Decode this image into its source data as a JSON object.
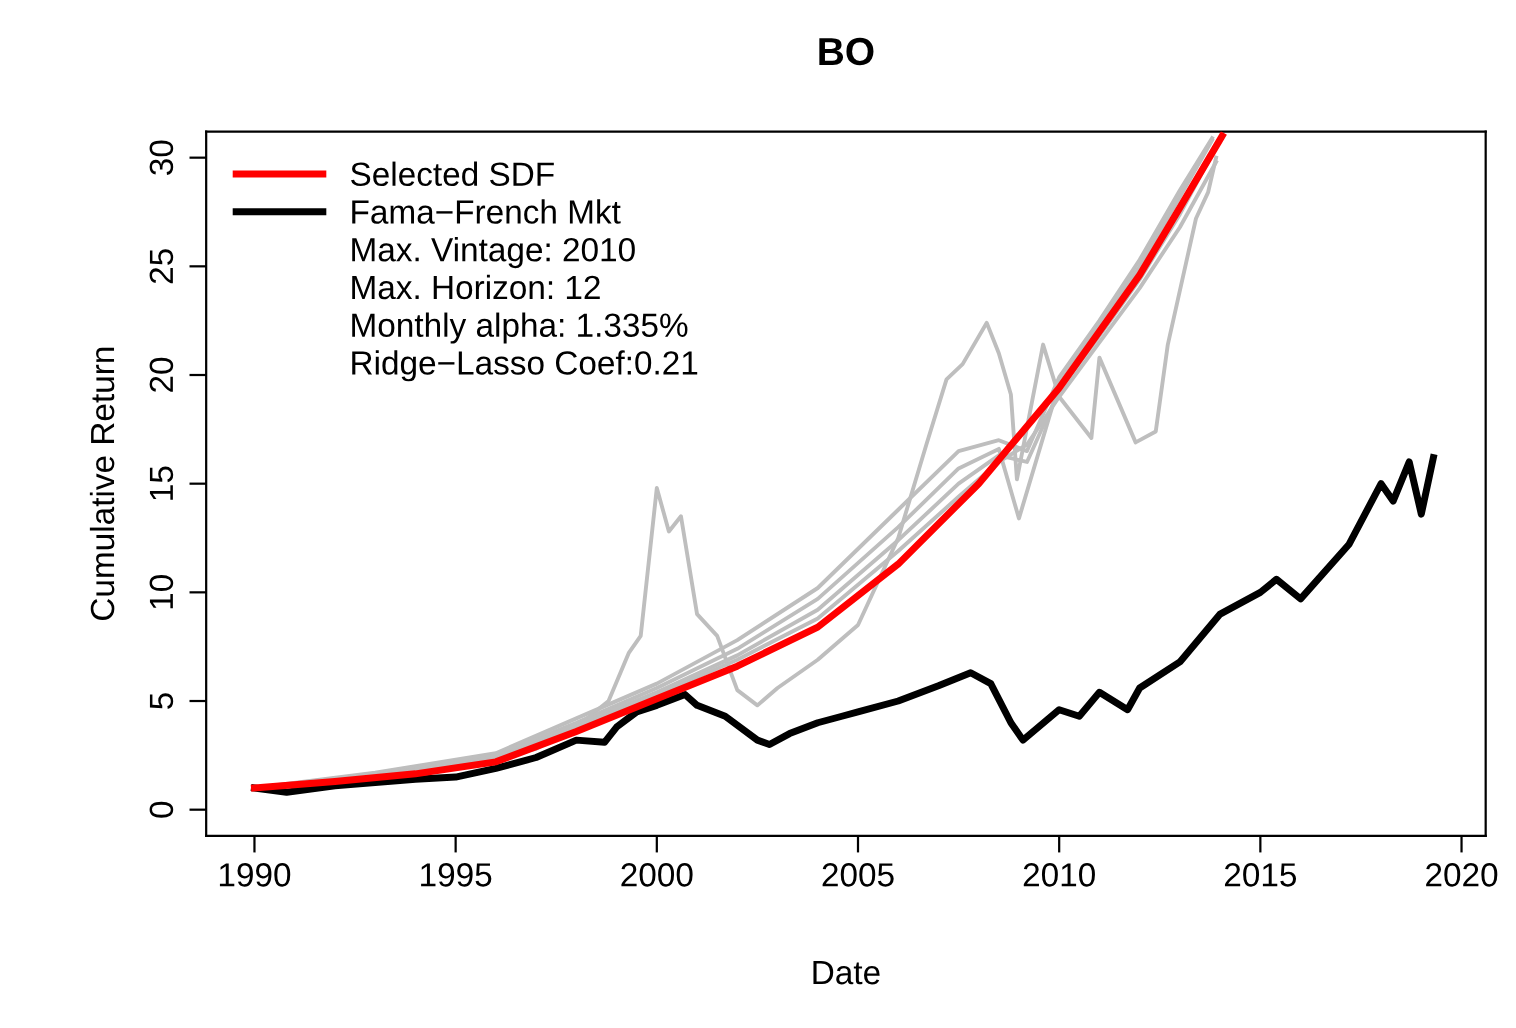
{
  "chart_data": {
    "type": "line",
    "title": "BO",
    "xlabel": "Date",
    "ylabel": "Cumulative Return",
    "xlim": [
      1988.8,
      2020.6
    ],
    "ylim": [
      -1.2,
      31.2
    ],
    "xticks": [
      1990,
      1995,
      2000,
      2005,
      2010,
      2015,
      2020
    ],
    "yticks": [
      0,
      5,
      10,
      15,
      20,
      25,
      30
    ],
    "grid": false,
    "legend": "top left",
    "line_style": "solid",
    "marker": "none",
    "annotations": [
      "Max. Vintage: 2010",
      "Max. Horizon: 12",
      "Monthly alpha: 1.335%",
      "Ridge−Lasso Coef:0.21"
    ],
    "series": [
      {
        "color": "#bebebe",
        "x": [
          1990,
          1993,
          1996,
          1997,
          1998,
          1998.8,
          1999.3,
          1999.6,
          2000,
          2000.3,
          2000.6,
          2001,
          2001.5,
          2002,
          2002.5,
          2003,
          2004,
          2005,
          2006,
          2006.7,
          2007.2,
          2007.6,
          2008.2,
          2008.5,
          2008.8,
          2008.95,
          2009.6,
          2010,
          2010.8,
          2011,
          2011.9,
          2012.4,
          2012.7,
          2013.4,
          2013.7,
          2013.9
        ],
        "values": [
          1.0,
          1.6,
          2.4,
          2.8,
          3.8,
          5.0,
          7.2,
          8.0,
          14.8,
          12.8,
          13.5,
          9.0,
          8.0,
          5.5,
          4.8,
          5.6,
          6.9,
          8.5,
          12.5,
          16.8,
          19.8,
          20.5,
          22.4,
          21.0,
          19.1,
          15.2,
          21.4,
          19.0,
          17.1,
          20.8,
          16.9,
          17.4,
          21.4,
          27.2,
          28.4,
          30.0
        ]
      },
      {
        "color": "#bebebe",
        "x": [
          1990,
          1993,
          1996,
          1998,
          2000,
          2002,
          2004,
          2006,
          2007.5,
          2008.5,
          2009.2,
          2010,
          2011,
          2012,
          2013,
          2013.8
        ],
        "values": [
          1.0,
          1.7,
          2.6,
          4.2,
          5.8,
          7.8,
          10.2,
          13.8,
          16.5,
          17.0,
          16.5,
          19.9,
          22.5,
          25.3,
          28.5,
          30.9
        ]
      },
      {
        "color": "#bebebe",
        "x": [
          1990,
          1993,
          1996,
          1998,
          2000,
          2002,
          2004,
          2006,
          2007.5,
          2008.5,
          2009.0,
          2010,
          2011,
          2012,
          2013,
          2013.8
        ],
        "values": [
          1.0,
          1.65,
          2.5,
          4.0,
          5.6,
          7.4,
          9.7,
          13.0,
          15.7,
          16.6,
          13.4,
          19.6,
          22.3,
          25.0,
          28.2,
          30.8
        ]
      },
      {
        "color": "#bebebe",
        "x": [
          1990,
          1993,
          1996,
          1998,
          2000,
          2002,
          2004,
          2006,
          2007.5,
          2008.5,
          2009.2,
          2010,
          2011,
          2012,
          2013,
          2013.9
        ],
        "values": [
          1.0,
          1.6,
          2.4,
          3.9,
          5.4,
          7.1,
          9.2,
          12.4,
          15.0,
          16.3,
          16.0,
          19.3,
          21.8,
          24.4,
          27.4,
          30.5
        ]
      },
      {
        "color": "#bebebe",
        "x": [
          1990,
          1993,
          1996,
          1998,
          2000,
          2002,
          2004,
          2006,
          2007.5,
          2008.5,
          2009.2,
          2010,
          2011,
          2012,
          2013,
          2013.9
        ],
        "values": [
          1.0,
          1.55,
          2.3,
          3.8,
          5.3,
          6.9,
          8.8,
          11.9,
          14.4,
          16.0,
          16.8,
          19.0,
          21.5,
          24.0,
          26.8,
          29.8
        ]
      },
      {
        "name": "Fama−French Mkt",
        "color": "#000000",
        "x": [
          1990,
          1990.8,
          1992,
          1994,
          1995,
          1996,
          1997,
          1998,
          1998.7,
          1999,
          1999.5,
          2000,
          2000.7,
          2001,
          2001.7,
          2002.5,
          2002.8,
          2003.3,
          2004,
          2004.6,
          2005,
          2006,
          2007,
          2007.8,
          2008.3,
          2008.8,
          2009.1,
          2010,
          2010.5,
          2011,
          2011.7,
          2012,
          2013,
          2014,
          2015,
          2015.4,
          2016,
          2017.2,
          2018,
          2018.3,
          2018.7,
          2019.0,
          2019.3
        ],
        "values": [
          1.0,
          0.8,
          1.1,
          1.4,
          1.5,
          1.9,
          2.4,
          3.2,
          3.1,
          3.8,
          4.5,
          4.8,
          5.3,
          4.8,
          4.3,
          3.2,
          3.0,
          3.5,
          4.0,
          4.3,
          4.5,
          5.0,
          5.7,
          6.3,
          5.8,
          4.0,
          3.2,
          4.6,
          4.3,
          5.4,
          4.6,
          5.6,
          6.8,
          9.0,
          10.0,
          10.6,
          9.7,
          12.2,
          15.0,
          14.2,
          16.0,
          13.6,
          16.2
        ]
      },
      {
        "name": "Selected SDF",
        "color": "#ff0000",
        "x": [
          1990,
          1992,
          1994,
          1996,
          1998,
          2000,
          2002,
          2004,
          2006,
          2008,
          2010,
          2012,
          2013,
          2014.05
        ],
        "values": [
          1.0,
          1.3,
          1.65,
          2.2,
          3.6,
          5.1,
          6.6,
          8.4,
          11.3,
          15.0,
          19.4,
          24.6,
          27.7,
          31.0
        ]
      }
    ]
  }
}
